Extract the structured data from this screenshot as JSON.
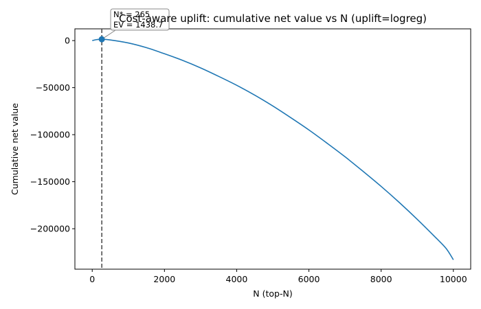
{
  "chart_data": {
    "type": "line",
    "title": "Cost-aware uplift: cumulative net value vs N (uplift=logreg)",
    "xlabel": "N (top-N)",
    "ylabel": "Cumulative net value",
    "xlim": [
      -480,
      10480
    ],
    "ylim": [
      -243000,
      12500
    ],
    "xticks": [
      0,
      2000,
      4000,
      6000,
      8000,
      10000
    ],
    "xtick_labels": [
      "0",
      "2000",
      "4000",
      "6000",
      "8000",
      "10000"
    ],
    "yticks": [
      0,
      -50000,
      -100000,
      -150000,
      -200000
    ],
    "ytick_labels": [
      "0",
      "−50000",
      "−100000",
      "−150000",
      "−200000"
    ],
    "grid": false,
    "series": [
      {
        "color": "#1f77b4",
        "x": [
          0,
          100,
          200,
          265,
          500,
          1000,
          1500,
          2000,
          2500,
          3000,
          3500,
          4000,
          4500,
          5000,
          5500,
          6000,
          6500,
          7000,
          7500,
          8000,
          8500,
          9000,
          9500,
          9800,
          10000
        ],
        "y": [
          0,
          900,
          1350,
          1438.7,
          700,
          -2500,
          -7500,
          -14000,
          -21000,
          -29000,
          -38000,
          -47500,
          -58000,
          -69500,
          -82000,
          -95000,
          -109000,
          -123500,
          -139000,
          -155000,
          -172000,
          -190000,
          -209000,
          -221000,
          -233000
        ]
      }
    ],
    "vline": {
      "x": 265,
      "style": "dashed",
      "color": "#444444"
    },
    "optimum_point": {
      "x": 265,
      "y": 1438.7,
      "color": "#1f77b4"
    },
    "annotation": {
      "line1": "N* = 265",
      "line2": "EV = 1438.7"
    }
  }
}
